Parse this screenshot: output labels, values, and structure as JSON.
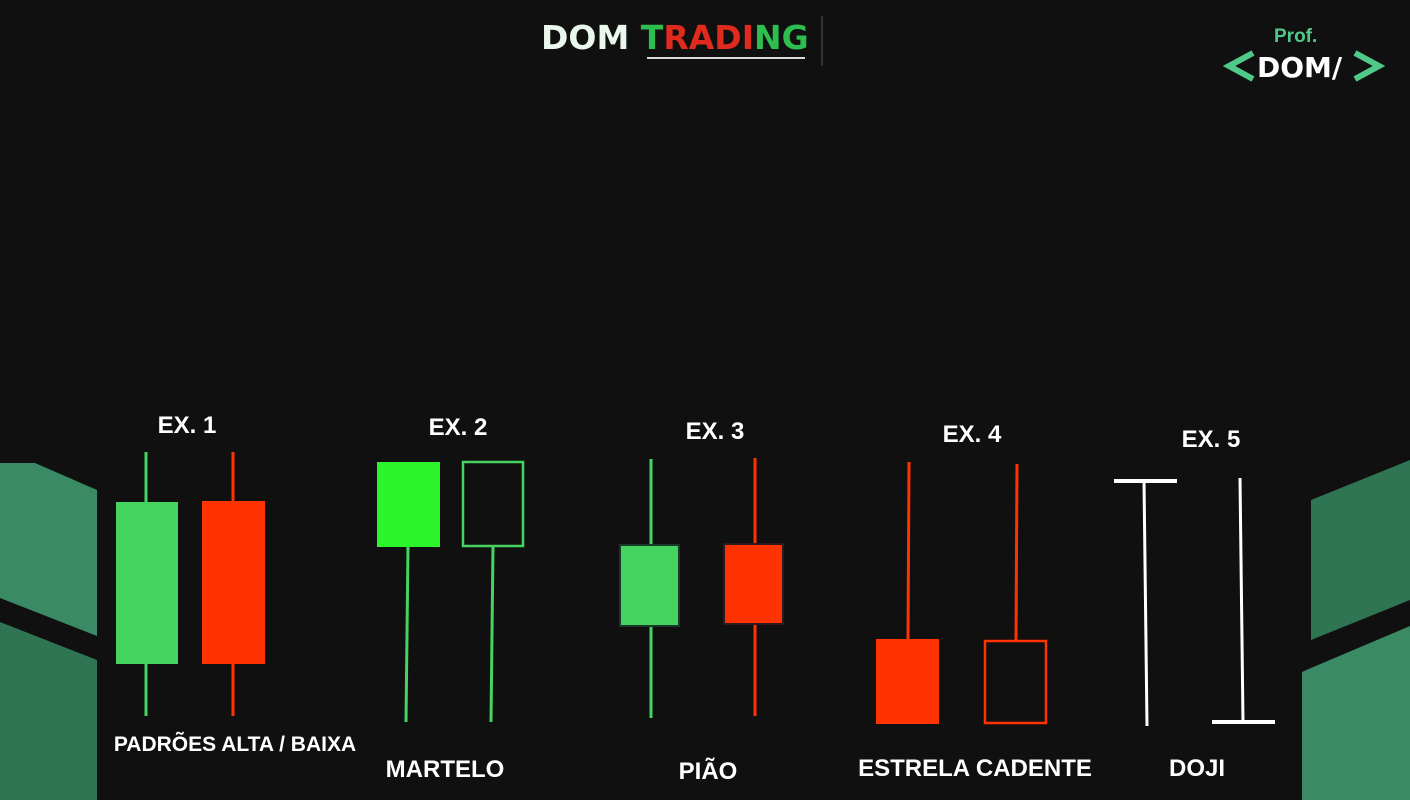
{
  "header": {
    "brand_word_1": "DOM",
    "brand_word_2_letters": [
      "T",
      "R",
      "A",
      "D",
      "I",
      "N",
      "G"
    ],
    "brand_colors": {
      "white": "#e9f7ec",
      "green": "#2ebd4f",
      "red": "#e02a1e"
    }
  },
  "author_badge": {
    "label": "Prof.",
    "name": "DOM/",
    "bracket_left": "<",
    "bracket_right": ">",
    "color": "#4fc98a"
  },
  "palette": {
    "bull": "#44d45f",
    "bull_bright": "#2cf52c",
    "bear": "#ff3300",
    "neutral": "#ffffff",
    "side_panel": "#3a8a65"
  },
  "examples": [
    {
      "id": "ex1",
      "label": "EX. 1",
      "title": "PADRÕES ALTA / BAIXA"
    },
    {
      "id": "ex2",
      "label": "EX. 2",
      "title": "MARTELO"
    },
    {
      "id": "ex3",
      "label": "EX. 3",
      "title": "PIÃO"
    },
    {
      "id": "ex4",
      "label": "EX. 4",
      "title": "ESTRELA CADENTE"
    },
    {
      "id": "ex5",
      "label": "EX. 5",
      "title": "DOJI"
    }
  ],
  "icons": [
    "logo-mark",
    "code-brackets-icon"
  ]
}
